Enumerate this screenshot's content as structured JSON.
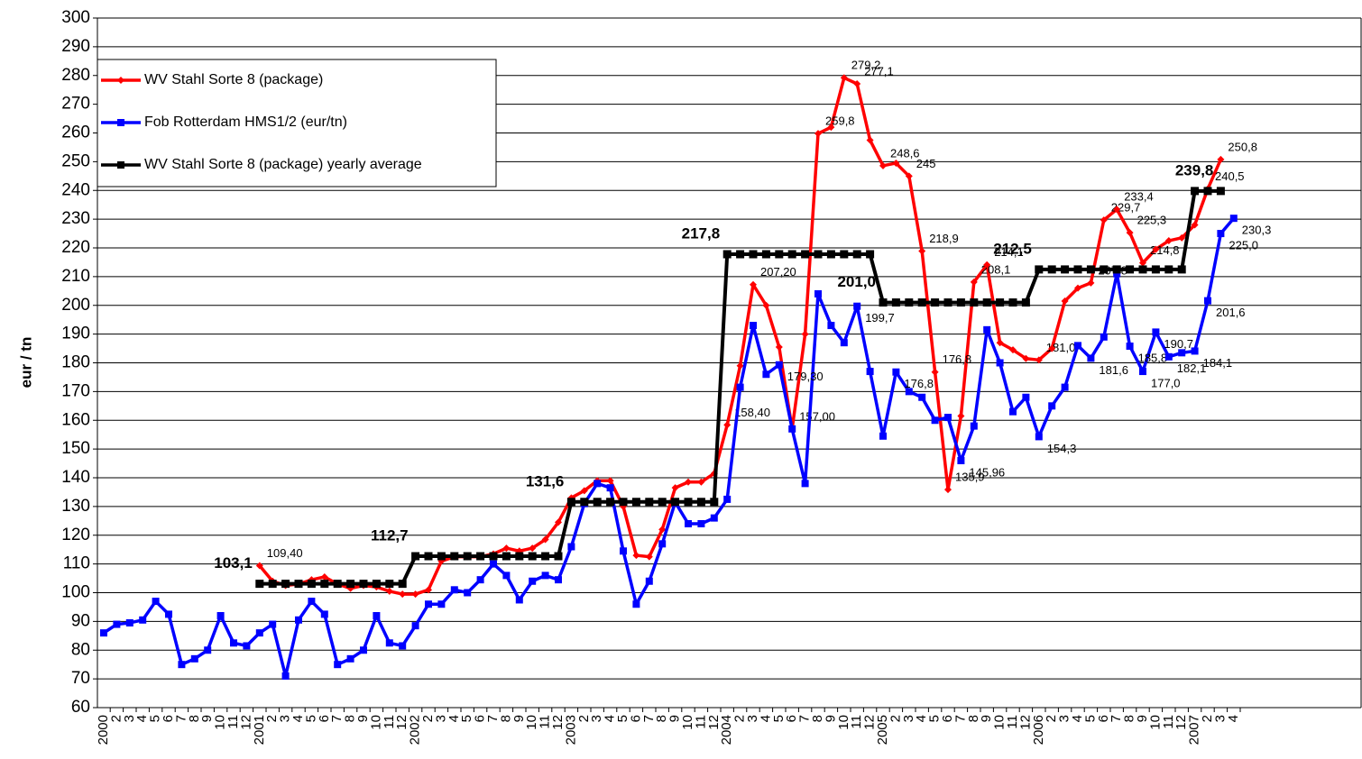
{
  "chart_data": {
    "type": "line",
    "ylabel": "eur / tn",
    "ylim": [
      60,
      300
    ],
    "yticks": [
      60,
      70,
      80,
      90,
      100,
      110,
      120,
      130,
      140,
      150,
      160,
      170,
      180,
      190,
      200,
      210,
      220,
      230,
      240,
      250,
      260,
      270,
      280,
      290,
      300
    ],
    "grid": true,
    "legend": "upper left",
    "categories": [
      "2000",
      "2",
      "3",
      "4",
      "5",
      "6",
      "7",
      "8",
      "9",
      "10",
      "11",
      "12",
      "2001",
      "2",
      "3",
      "4",
      "5",
      "6",
      "7",
      "8",
      "9",
      "10",
      "11",
      "12",
      "2002",
      "2",
      "3",
      "4",
      "5",
      "6",
      "7",
      "8",
      "9",
      "10",
      "11",
      "12",
      "2003",
      "2",
      "3",
      "4",
      "5",
      "6",
      "7",
      "8",
      "9",
      "10",
      "11",
      "12",
      "2004",
      "2",
      "3",
      "4",
      "5",
      "6",
      "7",
      "8",
      "9",
      "10",
      "11",
      "12",
      "2005",
      "2",
      "3",
      "4",
      "5",
      "6",
      "7",
      "8",
      "9",
      "10",
      "11",
      "12",
      "2006",
      "2",
      "3",
      "4",
      "5",
      "6",
      "7",
      "8",
      "9",
      "10",
      "11",
      "12",
      "2007",
      "2",
      "3",
      "4"
    ],
    "series": [
      {
        "name": "WV Stahl Sorte 8 (package)",
        "color": "#ff0000",
        "marker": "diamond",
        "values": [
          null,
          null,
          null,
          null,
          null,
          null,
          null,
          null,
          null,
          null,
          null,
          null,
          109.4,
          104,
          102.5,
          103,
          104.5,
          105.5,
          103,
          101.5,
          102.5,
          102,
          100.5,
          99.5,
          99.5,
          101,
          111,
          112.5,
          112.5,
          112.5,
          113.5,
          115.5,
          114.5,
          115.5,
          118.5,
          124.5,
          133,
          135.5,
          139,
          139,
          130,
          113,
          112.5,
          122,
          136.5,
          138.5,
          138.5,
          141.5,
          158.4,
          179,
          207.2,
          200,
          185.5,
          157.0,
          190,
          259.8,
          262,
          279.2,
          277.1,
          257.5,
          248.6,
          249.5,
          245,
          218.9,
          176.8,
          135.9,
          161.5,
          208.1,
          214.1,
          187,
          184.5,
          181.5,
          181.0,
          185,
          201.5,
          206,
          207.8,
          229.7,
          233.4,
          225.3,
          214.8,
          219.5,
          222.5,
          223.5,
          228,
          240.5,
          250.8,
          null
        ],
        "value_labels": [
          null,
          null,
          null,
          null,
          null,
          null,
          null,
          null,
          null,
          null,
          null,
          null,
          "109,40",
          null,
          null,
          null,
          null,
          null,
          null,
          null,
          null,
          null,
          null,
          null,
          null,
          null,
          null,
          null,
          null,
          null,
          null,
          null,
          null,
          null,
          null,
          null,
          null,
          null,
          null,
          null,
          null,
          null,
          null,
          null,
          null,
          null,
          null,
          null,
          "158,40",
          null,
          "207,20",
          null,
          null,
          "157,00",
          null,
          "259,8",
          null,
          "279,2",
          "277,1",
          null,
          "248,6",
          null,
          "245",
          "218,9",
          "176,8",
          "135,9",
          null,
          "208,1",
          "214,1",
          null,
          null,
          null,
          "181,0",
          null,
          null,
          null,
          "207,8",
          "229,7",
          "233,4",
          "225,3",
          "214,8",
          null,
          null,
          null,
          null,
          "240,5",
          "250,8",
          null
        ]
      },
      {
        "name": "Fob Rotterdam HMS1/2 (eur/tn)",
        "color": "#0000ff",
        "marker": "square",
        "values": [
          86,
          89,
          89.5,
          90.5,
          97,
          92.5,
          75,
          77,
          80,
          92,
          82.5,
          81.5,
          86,
          89,
          71,
          90.5,
          97,
          92.5,
          75,
          77,
          80,
          92,
          82.5,
          81.5,
          88.5,
          96,
          96,
          101,
          100,
          104.5,
          110,
          106,
          97.5,
          104,
          106,
          104.5,
          116,
          131,
          138,
          136.5,
          114.5,
          96,
          104,
          117,
          131.5,
          124,
          124,
          126,
          132.5,
          171.5,
          193,
          176,
          179.3,
          157,
          138,
          204,
          193,
          187,
          199.7,
          177,
          154.5,
          176.8,
          170,
          168,
          160,
          161,
          145.96,
          158,
          191.5,
          180,
          163,
          168,
          154.3,
          165,
          171.5,
          186,
          181.6,
          189,
          211,
          185.8,
          177.0,
          190.7,
          182.1,
          183.5,
          184.1,
          201.6,
          225.0,
          230.3
        ],
        "value_labels": [
          null,
          null,
          null,
          null,
          null,
          null,
          null,
          null,
          null,
          null,
          null,
          null,
          null,
          null,
          null,
          null,
          null,
          null,
          null,
          null,
          null,
          null,
          null,
          null,
          null,
          null,
          null,
          null,
          null,
          null,
          null,
          null,
          null,
          null,
          null,
          null,
          null,
          null,
          null,
          null,
          null,
          null,
          null,
          null,
          null,
          null,
          null,
          null,
          null,
          null,
          null,
          null,
          "179,30",
          null,
          null,
          null,
          null,
          null,
          "199,7",
          null,
          null,
          "176,8",
          null,
          null,
          null,
          null,
          "145,96",
          null,
          null,
          null,
          null,
          null,
          "154,3",
          null,
          null,
          null,
          "181,6",
          null,
          null,
          "185,8",
          "177,0",
          "190,7",
          "182,1",
          null,
          "184,1",
          "201,6",
          "225,0",
          "230,3"
        ]
      },
      {
        "name": "WV Stahl Sorte 8 (package) yearly average",
        "color": "#000000",
        "marker": "square",
        "values": [
          null,
          null,
          null,
          null,
          null,
          null,
          null,
          null,
          null,
          null,
          null,
          null,
          103.1,
          103.1,
          103.1,
          103.1,
          103.1,
          103.1,
          103.1,
          103.1,
          103.1,
          103.1,
          103.1,
          103.1,
          112.7,
          112.7,
          112.7,
          112.7,
          112.7,
          112.7,
          112.7,
          112.7,
          112.7,
          112.7,
          112.7,
          112.7,
          131.6,
          131.6,
          131.6,
          131.6,
          131.6,
          131.6,
          131.6,
          131.6,
          131.6,
          131.6,
          131.6,
          131.6,
          217.8,
          217.8,
          217.8,
          217.8,
          217.8,
          217.8,
          217.8,
          217.8,
          217.8,
          217.8,
          217.8,
          217.8,
          201.0,
          201.0,
          201.0,
          201.0,
          201.0,
          201.0,
          201.0,
          201.0,
          201.0,
          201.0,
          201.0,
          201.0,
          212.5,
          212.5,
          212.5,
          212.5,
          212.5,
          212.5,
          212.5,
          212.5,
          212.5,
          212.5,
          212.5,
          212.5,
          239.8,
          239.8,
          239.8,
          null
        ],
        "value_labels": [
          null,
          null,
          null,
          null,
          null,
          null,
          null,
          null,
          null,
          null,
          null,
          null,
          "103,1",
          null,
          null,
          null,
          null,
          null,
          null,
          null,
          null,
          null,
          null,
          null,
          "112,7",
          null,
          null,
          null,
          null,
          null,
          null,
          null,
          null,
          null,
          null,
          null,
          "131,6",
          null,
          null,
          null,
          null,
          null,
          null,
          null,
          null,
          null,
          null,
          null,
          "217,8",
          null,
          null,
          null,
          null,
          null,
          null,
          null,
          null,
          null,
          null,
          null,
          "201,0",
          null,
          null,
          null,
          null,
          null,
          null,
          null,
          null,
          null,
          null,
          null,
          "212,5",
          null,
          null,
          null,
          null,
          null,
          null,
          null,
          null,
          null,
          null,
          null,
          null,
          null,
          "239,8",
          null
        ]
      }
    ]
  }
}
